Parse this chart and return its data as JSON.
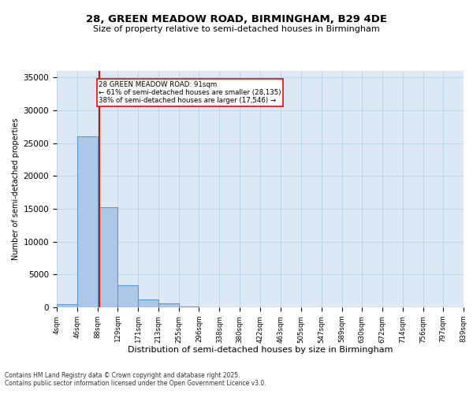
{
  "title_line1": "28, GREEN MEADOW ROAD, BIRMINGHAM, B29 4DE",
  "title_line2": "Size of property relative to semi-detached houses in Birmingham",
  "xlabel": "Distribution of semi-detached houses by size in Birmingham",
  "ylabel": "Number of semi-detached properties",
  "bins": [
    4,
    46,
    88,
    129,
    171,
    213,
    255,
    296,
    338,
    380,
    422,
    463,
    505,
    547,
    589,
    630,
    672,
    714,
    756,
    797,
    839
  ],
  "counts": [
    500,
    26100,
    15200,
    3400,
    1200,
    600,
    150,
    50,
    20,
    10,
    5,
    0,
    0,
    0,
    0,
    0,
    0,
    0,
    0,
    0
  ],
  "bar_color": "#aec6e8",
  "bar_edge_color": "#5b9bd5",
  "bar_linewidth": 0.8,
  "grid_color": "#c0d4e8",
  "bg_color": "#ddeaf6",
  "red_line_x": 91,
  "red_line_color": "red",
  "annotation_text": "28 GREEN MEADOW ROAD: 91sqm\n← 61% of semi-detached houses are smaller (28,135)\n38% of semi-detached houses are larger (17,546) →",
  "ylim": [
    0,
    36000
  ],
  "yticks": [
    0,
    5000,
    10000,
    15000,
    20000,
    25000,
    30000,
    35000
  ],
  "footer_line1": "Contains HM Land Registry data © Crown copyright and database right 2025.",
  "footer_line2": "Contains public sector information licensed under the Open Government Licence v3.0.",
  "tick_labels": [
    "4sqm",
    "46sqm",
    "88sqm",
    "129sqm",
    "171sqm",
    "213sqm",
    "255sqm",
    "296sqm",
    "338sqm",
    "380sqm",
    "422sqm",
    "463sqm",
    "505sqm",
    "547sqm",
    "589sqm",
    "630sqm",
    "672sqm",
    "714sqm",
    "756sqm",
    "797sqm",
    "839sqm"
  ]
}
